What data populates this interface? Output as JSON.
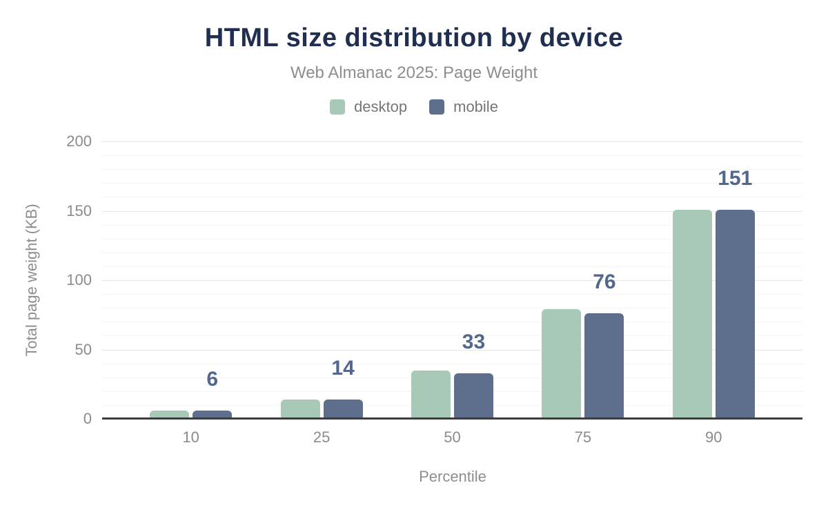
{
  "header": {
    "title": "HTML size distribution by device",
    "subtitle": "Web Almanac 2025: Page Weight"
  },
  "colors": {
    "title": "#202e51",
    "subtitle": "#8d8d8d",
    "desktop": "#a8c9b8",
    "mobile": "#5e6f8d",
    "data_label": "#51678f",
    "axis_line": "#3d3d3d",
    "major_grid": "#e6e6e6",
    "minor_grid": "#f4f4f4",
    "tick_text": "#8b8b8b"
  },
  "chart_data": {
    "type": "bar",
    "title": "HTML size distribution by device",
    "subtitle": "Web Almanac 2025: Page Weight",
    "categories": [
      "10",
      "25",
      "50",
      "75",
      "90"
    ],
    "series": [
      {
        "name": "desktop",
        "color": "#a8c9b8",
        "values": [
          6,
          14,
          35,
          79,
          151
        ]
      },
      {
        "name": "mobile",
        "color": "#5e6f8d",
        "values": [
          6,
          14,
          33,
          76,
          151
        ]
      }
    ],
    "bar_labels": [
      "6",
      "14",
      "33",
      "76",
      "151"
    ],
    "xlabel": "Percentile",
    "ylabel": "Total page weight (KB)",
    "ylim": [
      0,
      200
    ],
    "ytick_interval": 50,
    "ytick_labels": [
      "0",
      "50",
      "100",
      "150",
      "200"
    ],
    "minor_grid_interval": 10,
    "grid": true,
    "legend_position": "top"
  }
}
